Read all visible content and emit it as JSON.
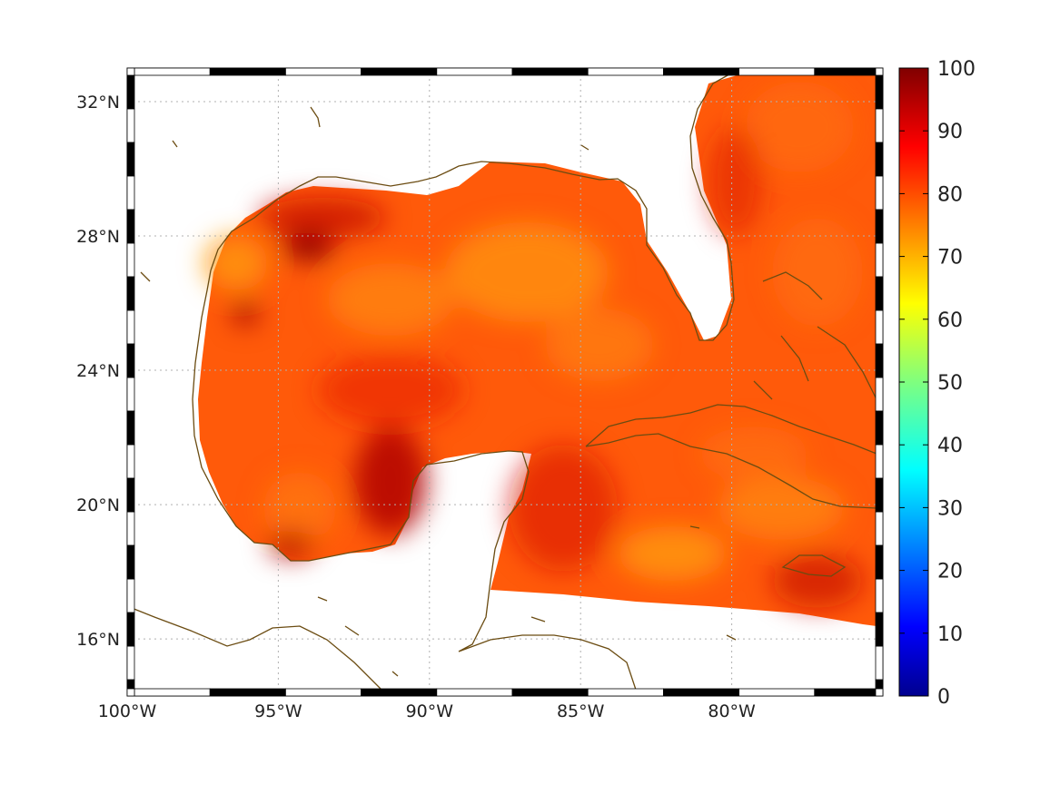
{
  "map": {
    "lon_range": [
      -100,
      -75
    ],
    "lat_range": [
      14.3,
      33
    ],
    "x_ticks": [
      {
        "lon": -100,
        "label": "100°W"
      },
      {
        "lon": -95,
        "label": "95°W"
      },
      {
        "lon": -90,
        "label": "90°W"
      },
      {
        "lon": -85,
        "label": "85°W"
      },
      {
        "lon": -80,
        "label": "80°W"
      }
    ],
    "y_ticks": [
      {
        "lat": 32,
        "label": "32°N"
      },
      {
        "lat": 28,
        "label": "28°N"
      },
      {
        "lat": 24,
        "label": "24°N"
      },
      {
        "lat": 20,
        "label": "20°N"
      },
      {
        "lat": 16,
        "label": "16°N"
      }
    ],
    "grid": "dotted",
    "frame": "alternating black-white border",
    "coastline_color": "#6b4c12",
    "field_colormap": "jet",
    "field_typical_range": [
      75,
      95
    ]
  },
  "colorbar": {
    "min": 0,
    "max": 100,
    "colormap": "jet",
    "ticks": [
      "100",
      "90",
      "80",
      "70",
      "60",
      "50",
      "40",
      "30",
      "20",
      "10",
      "0"
    ],
    "tick_values": [
      100,
      90,
      80,
      70,
      60,
      50,
      40,
      30,
      20,
      10,
      0
    ]
  }
}
